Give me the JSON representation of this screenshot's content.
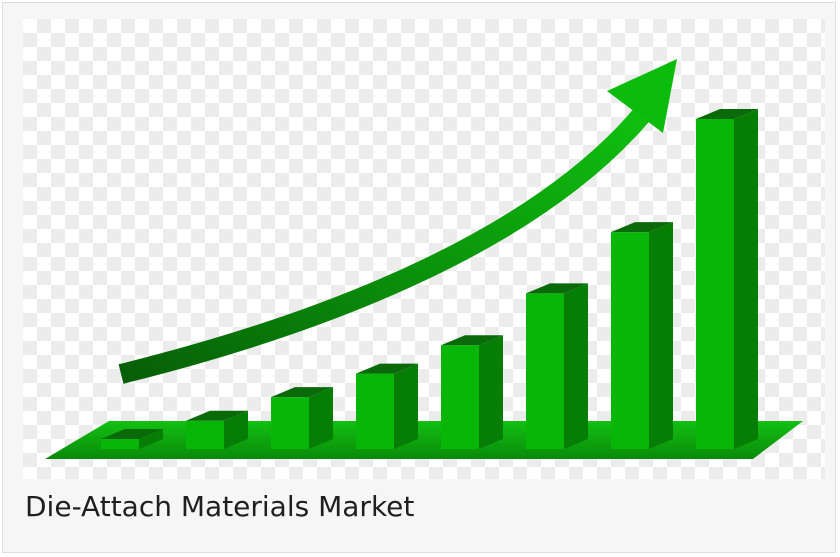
{
  "caption": "Die-Attach Materials Market",
  "colors": {
    "bar_front": "#08b608",
    "bar_side": "#067e06",
    "bar_top": "#0a6a0a",
    "floor": "#0a9a0a",
    "floor_edge": "#076e07",
    "arrow": "#09b409",
    "arrow_dark": "#075f07"
  },
  "chart_data": {
    "type": "bar",
    "title": "",
    "xlabel": "",
    "ylabel": "",
    "categories": [
      "",
      "",
      "",
      "",
      "",
      "",
      "",
      ""
    ],
    "values": [
      2,
      6,
      11,
      16,
      22,
      33,
      46,
      70
    ],
    "ylim": [
      0,
      70
    ],
    "grid": false,
    "legend": "none",
    "annotation": "upward-trend-arrow"
  }
}
